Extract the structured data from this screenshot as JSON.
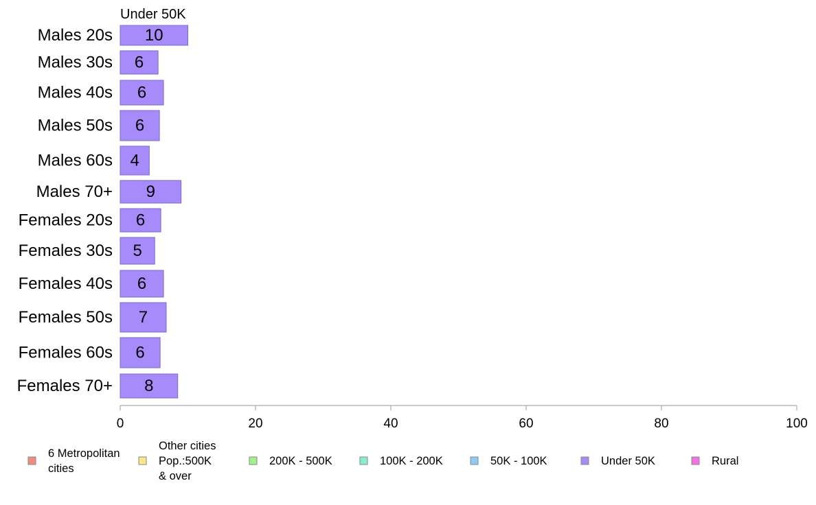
{
  "chart_data": {
    "type": "bar",
    "orientation": "horizontal",
    "title": "Under 50K",
    "categories": [
      "Males 20s",
      "Males 30s",
      "Males 40s",
      "Males 50s",
      "Males 60s",
      "Males 70+",
      "Females 20s",
      "Females 30s",
      "Females 40s",
      "Females 50s",
      "Females 60s",
      "Females 70+"
    ],
    "series": [
      {
        "name": "Under 50K",
        "color": "#a78bfa",
        "values": [
          10,
          5.6,
          6.4,
          5.8,
          4.3,
          9,
          6,
          5.1,
          6.4,
          6.8,
          5.9,
          8.5
        ],
        "labels": [
          "10",
          "6",
          "6",
          "6",
          "4",
          "9",
          "6",
          "5",
          "6",
          "7",
          "6",
          "8"
        ]
      }
    ],
    "xlim": [
      0,
      100
    ],
    "xticks": [
      "0",
      "20",
      "40",
      "60",
      "80",
      "100"
    ],
    "xlabel": "",
    "ylabel": "",
    "grid": false,
    "legend_position": "bottom",
    "legend": [
      {
        "lines": [
          "6 Metropolitan",
          " cities"
        ],
        "color": "#f28b82"
      },
      {
        "lines": [
          "Other cities",
          "Pop.:500K",
          " & over"
        ],
        "color": "#fde68a"
      },
      {
        "lines": [
          "200K - 500K"
        ],
        "color": "#a6f08c"
      },
      {
        "lines": [
          "100K - 200K"
        ],
        "color": "#86efc8"
      },
      {
        "lines": [
          "50K - 100K"
        ],
        "color": "#8ecbf5"
      },
      {
        "lines": [
          "Under 50K"
        ],
        "color": "#a78bfa"
      },
      {
        "lines": [
          "Rural"
        ],
        "color": "#f472e6"
      }
    ]
  }
}
